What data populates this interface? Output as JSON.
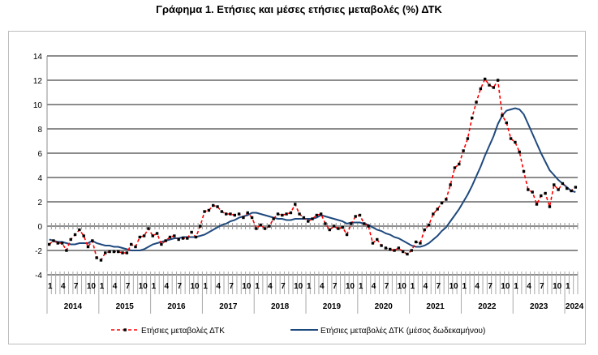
{
  "chart_data": {
    "type": "line",
    "title": "Γράφημα 1. Ετήσιες και μέσες ετήσιες μεταβολές (%) ΔΤΚ",
    "xlabel": "",
    "ylabel": "",
    "ylim": [
      -4,
      14
    ],
    "yticks": [
      -4,
      -2,
      0,
      2,
      4,
      6,
      8,
      10,
      12,
      14
    ],
    "grid": true,
    "legend": "bottom",
    "start": "2014-01",
    "end": "2024-03",
    "month_tick_labels": [
      "1",
      "4",
      "7",
      "10"
    ],
    "years": [
      "2014",
      "2015",
      "2016",
      "2017",
      "2018",
      "2019",
      "2020",
      "2021",
      "2022",
      "2023",
      "2024"
    ],
    "series": [
      {
        "name": "Ετήσιες μεταβολές ΔΤΚ",
        "color": "#ff0000",
        "marker_color": "#000000",
        "style": "dashed",
        "values": [
          -1.5,
          -1.2,
          -1.4,
          -1.4,
          -2.0,
          -1.1,
          -0.7,
          -0.3,
          -0.8,
          -1.7,
          -1.2,
          -2.6,
          -2.8,
          -2.2,
          -2.1,
          -2.1,
          -2.1,
          -2.2,
          -2.2,
          -1.5,
          -1.7,
          -0.9,
          -0.8,
          -0.2,
          -0.8,
          -0.6,
          -1.5,
          -1.2,
          -0.9,
          -0.8,
          -1.1,
          -1.0,
          -1.0,
          -0.5,
          -0.9,
          0.0,
          1.2,
          1.3,
          1.7,
          1.6,
          1.2,
          1.0,
          1.0,
          0.9,
          1.0,
          0.7,
          1.1,
          0.7,
          -0.2,
          0.1,
          -0.2,
          0.0,
          0.6,
          1.0,
          0.9,
          1.0,
          1.1,
          1.8,
          1.0,
          0.7,
          0.4,
          0.6,
          0.9,
          1.0,
          0.2,
          -0.3,
          0.0,
          -0.2,
          -0.1,
          -0.7,
          0.2,
          0.8,
          0.9,
          0.2,
          0.0,
          -1.4,
          -1.1,
          -1.6,
          -1.8,
          -1.9,
          -2.0,
          -1.8,
          -2.1,
          -2.3,
          -2.0,
          -1.3,
          -1.4,
          -0.3,
          0.1,
          1.0,
          1.4,
          1.9,
          2.2,
          3.4,
          4.8,
          5.1,
          6.2,
          7.2,
          8.9,
          10.2,
          11.3,
          12.1,
          11.6,
          11.4,
          12.0,
          9.1,
          8.5,
          7.2,
          6.9,
          6.1,
          4.5,
          3.0,
          2.8,
          1.8,
          2.5,
          2.7,
          1.6,
          3.4,
          3.0,
          3.5,
          3.1,
          2.9,
          3.2
        ]
      },
      {
        "name": "Ετήσιες μεταβολές ΔΤΚ (μέσος δωδεκαμήνου)",
        "color": "#1f497d",
        "style": "solid",
        "values": [
          -1.1,
          -1.2,
          -1.3,
          -1.3,
          -1.4,
          -1.5,
          -1.5,
          -1.4,
          -1.4,
          -1.4,
          -1.2,
          -1.4,
          -1.5,
          -1.6,
          -1.6,
          -1.7,
          -1.7,
          -1.8,
          -1.9,
          -2.0,
          -2.0,
          -2.0,
          -1.9,
          -1.7,
          -1.5,
          -1.4,
          -1.3,
          -1.2,
          -1.1,
          -1.0,
          -1.0,
          -0.9,
          -0.9,
          -0.9,
          -0.9,
          -0.8,
          -0.7,
          -0.5,
          -0.3,
          -0.1,
          0.1,
          0.2,
          0.4,
          0.5,
          0.7,
          0.8,
          0.9,
          1.1,
          1.1,
          1.0,
          0.9,
          0.8,
          0.7,
          0.6,
          0.6,
          0.5,
          0.5,
          0.6,
          0.6,
          0.6,
          0.6,
          0.6,
          0.7,
          0.9,
          0.8,
          0.7,
          0.6,
          0.5,
          0.4,
          0.2,
          0.3,
          0.3,
          0.3,
          0.2,
          0.1,
          -0.1,
          -0.3,
          -0.4,
          -0.6,
          -0.7,
          -0.9,
          -1.0,
          -1.2,
          -1.4,
          -1.6,
          -1.7,
          -1.7,
          -1.6,
          -1.4,
          -1.1,
          -0.8,
          -0.4,
          -0.1,
          0.4,
          0.9,
          1.4,
          2.0,
          2.6,
          3.3,
          4.1,
          4.9,
          5.8,
          6.6,
          7.4,
          8.4,
          9.1,
          9.5,
          9.6,
          9.7,
          9.6,
          9.2,
          8.4,
          7.6,
          6.8,
          6.0,
          5.3,
          4.6,
          4.2,
          3.8,
          3.5,
          3.2,
          2.9,
          2.8
        ]
      }
    ]
  }
}
